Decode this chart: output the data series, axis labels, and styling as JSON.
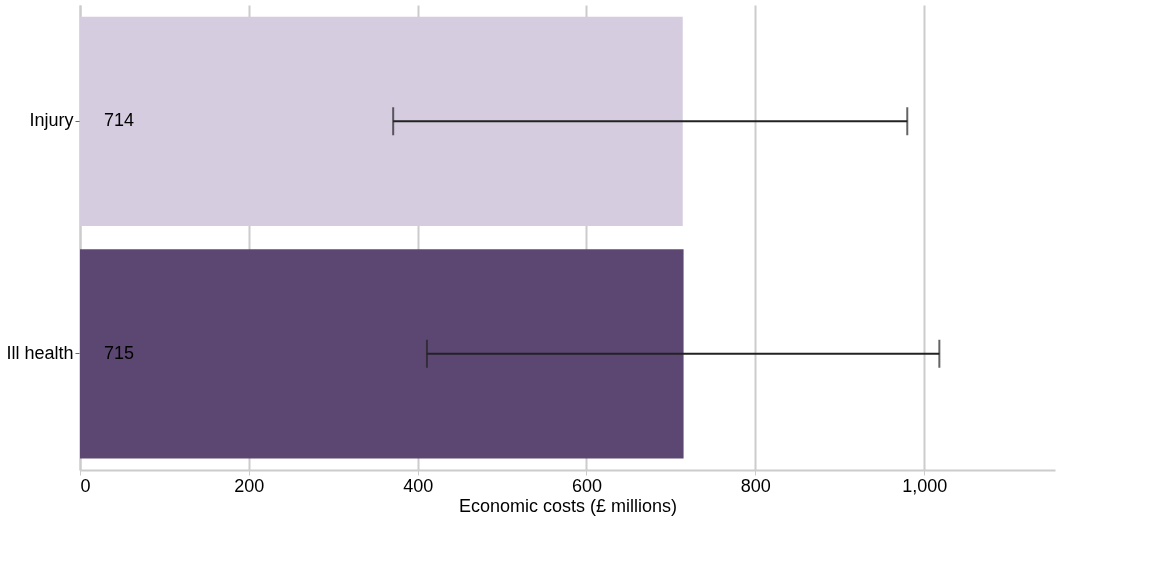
{
  "chart_data": {
    "type": "bar",
    "orientation": "horizontal",
    "xlabel": "Economic costs (£ millions)",
    "categories": [
      "Injury",
      "Ill health"
    ],
    "values": [
      714,
      715
    ],
    "colors": [
      "#d5cce0",
      "#5c4773"
    ],
    "errors": [
      [
        371,
        980
      ],
      [
        411,
        1018
      ]
    ],
    "xlim": [
      0,
      1155
    ],
    "xticks": [
      0,
      200,
      400,
      600,
      800,
      {
        "value": 1000,
        "label": "1,000"
      }
    ],
    "grid": "x",
    "data_labels": true
  }
}
